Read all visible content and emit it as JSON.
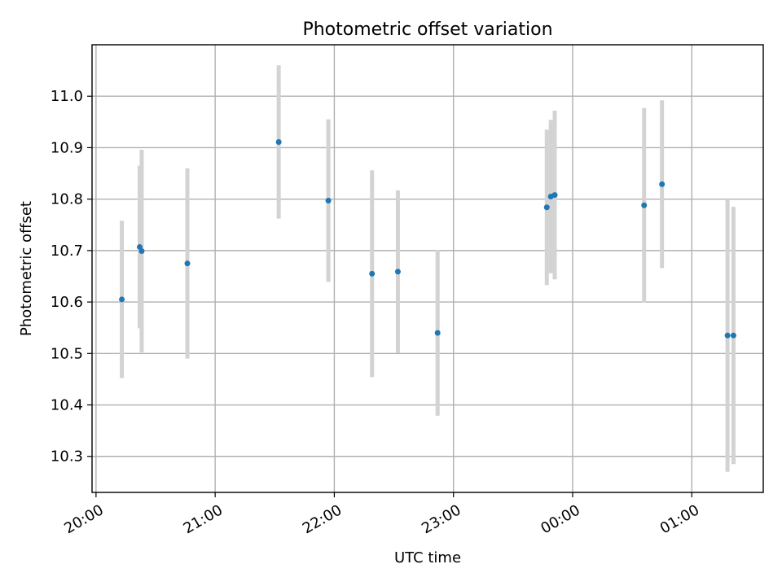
{
  "chart_data": {
    "type": "scatter",
    "title": "Photometric offset variation",
    "xlabel": "UTC time",
    "ylabel": "Photometric offset",
    "x_ticks": [
      "20:00",
      "21:00",
      "22:00",
      "23:00",
      "00:00",
      "01:00"
    ],
    "y_ticks": [
      "10.3",
      "10.4",
      "10.5",
      "10.6",
      "10.7",
      "10.8",
      "10.9",
      "11.0"
    ],
    "xlim": [
      "19:58",
      "01:36"
    ],
    "ylim": [
      10.23,
      11.1
    ],
    "grid": true,
    "series": [
      {
        "marker_color": "#1f77b4",
        "errorbar_color": "#d3d3d3",
        "points": [
          {
            "x": "20:13",
            "y": 10.605,
            "err": 0.153
          },
          {
            "x": "20:22",
            "y": 10.707,
            "err": 0.158
          },
          {
            "x": "20:23",
            "y": 10.699,
            "err": 0.197
          },
          {
            "x": "20:46",
            "y": 10.675,
            "err": 0.185
          },
          {
            "x": "21:32",
            "y": 10.911,
            "err": 0.149
          },
          {
            "x": "21:57",
            "y": 10.797,
            "err": 0.158
          },
          {
            "x": "22:19",
            "y": 10.655,
            "err": 0.201
          },
          {
            "x": "22:32",
            "y": 10.659,
            "err": 0.158
          },
          {
            "x": "22:52",
            "y": 10.54,
            "err": 0.161
          },
          {
            "x": "23:47",
            "y": 10.784,
            "err": 0.151
          },
          {
            "x": "23:49",
            "y": 10.805,
            "err": 0.149
          },
          {
            "x": "23:51",
            "y": 10.808,
            "err": 0.164
          },
          {
            "x": "00:36",
            "y": 10.788,
            "err": 0.189
          },
          {
            "x": "00:45",
            "y": 10.829,
            "err": 0.163
          },
          {
            "x": "01:18",
            "y": 10.535,
            "err": 0.265
          },
          {
            "x": "01:21",
            "y": 10.535,
            "err": 0.25
          }
        ]
      }
    ]
  }
}
